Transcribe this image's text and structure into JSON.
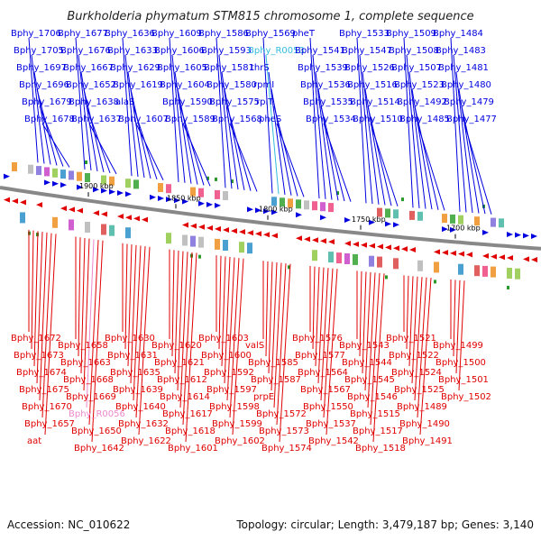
{
  "title": "Burkholderia phymatum STM815 chromosome 1, complete sequence",
  "footer": {
    "accession": "Accession: NC_010622",
    "summary": "Topology: circular; Length: 3,479,187 bp; Genes: 3,140"
  },
  "colors": {
    "top_strand": "#0000e0",
    "bottom_strand": "#e00000",
    "rna_gene": "#33bbdd",
    "rna_gene_bottom": "#ee88cc",
    "backbone": "#888888"
  },
  "ticks": [
    "1900 kbp",
    "1850 kbp",
    "1800 kbp",
    "1750 kbp",
    "1700 kbp"
  ],
  "top_labels": [
    "Bphy_1706",
    "Bphy_1705",
    "Bphy_1697",
    "Bphy_1696",
    "Bphy_1679",
    "Bphy_1678",
    "Bphy_1677",
    "Bphy_1676",
    "Bphy_1667",
    "Bphy_1652",
    "Bphy_1638",
    "Bphy_1637",
    "Bphy_1636",
    "Bphy_1633",
    "Bphy_1629",
    "Bphy_1619",
    "alaS",
    "Bphy_1607",
    "Bphy_1609",
    "Bphy_1606",
    "Bphy_1605",
    "Bphy_1604",
    "Bphy_1590",
    "Bphy_1589",
    "Bphy_1586",
    "Bphy_1593",
    "Bphy_1581",
    "Bphy_1580",
    "Bphy_1575",
    "Bphy_1568",
    "Bphy_1569",
    "Bphy_R0053",
    "thrS",
    "rpmI",
    "rplT",
    "pheS",
    "pheT",
    "Bphy_1541",
    "Bphy_1539",
    "Bphy_1536",
    "Bphy_1535",
    "Bphy_1534",
    "Bphy_1533",
    "Bphy_1547",
    "Bphy_1526",
    "Bphy_1516",
    "Bphy_1514",
    "Bphy_1510",
    "Bphy_1509",
    "Bphy_1508",
    "Bphy_1507",
    "Bphy_1523",
    "Bphy_1492",
    "Bphy_1485",
    "Bphy_1484",
    "Bphy_1483",
    "Bphy_1481",
    "Bphy_1480",
    "Bphy_1479",
    "Bphy_1477"
  ],
  "bottom_labels": [
    "Bphy_1672",
    "Bphy_1673",
    "Bphy_1674",
    "Bphy_1675",
    "Bphy_1670",
    "Bphy_1657",
    "aat",
    "Bphy_1658",
    "Bphy_1663",
    "Bphy_1668",
    "Bphy_1669",
    "Bphy_R0056",
    "Bphy_1650",
    "Bphy_1642",
    "Bphy_1630",
    "Bphy_1631",
    "Bphy_1635",
    "Bphy_1639",
    "Bphy_1640",
    "Bphy_1632",
    "Bphy_1622",
    "Bphy_1620",
    "Bphy_1621",
    "Bphy_1612",
    "Bphy_1614",
    "Bphy_1617",
    "Bphy_1618",
    "Bphy_1601",
    "Bphy_1603",
    "Bphy_1600",
    "Bphy_1592",
    "Bphy_1597",
    "Bphy_1598",
    "Bphy_1599",
    "Bphy_1602",
    "valS",
    "Bphy_1585",
    "Bphy_1587",
    "prpE",
    "Bphy_1572",
    "Bphy_1573",
    "Bphy_1574",
    "Bphy_1576",
    "Bphy_1577",
    "Bphy_1564",
    "Bphy_1567",
    "Bphy_1550",
    "Bphy_1537",
    "Bphy_1542",
    "Bphy_1543",
    "Bphy_1544",
    "Bphy_1545",
    "Bphy_1546",
    "Bphy_1515",
    "Bphy_1517",
    "Bphy_1518",
    "Bphy_1521",
    "Bphy_1522",
    "Bphy_1524",
    "Bphy_1525",
    "Bphy_1489",
    "Bphy_1490",
    "Bphy_1491",
    "Bphy_1499",
    "Bphy_1500",
    "Bphy_1501",
    "Bphy_1502"
  ]
}
